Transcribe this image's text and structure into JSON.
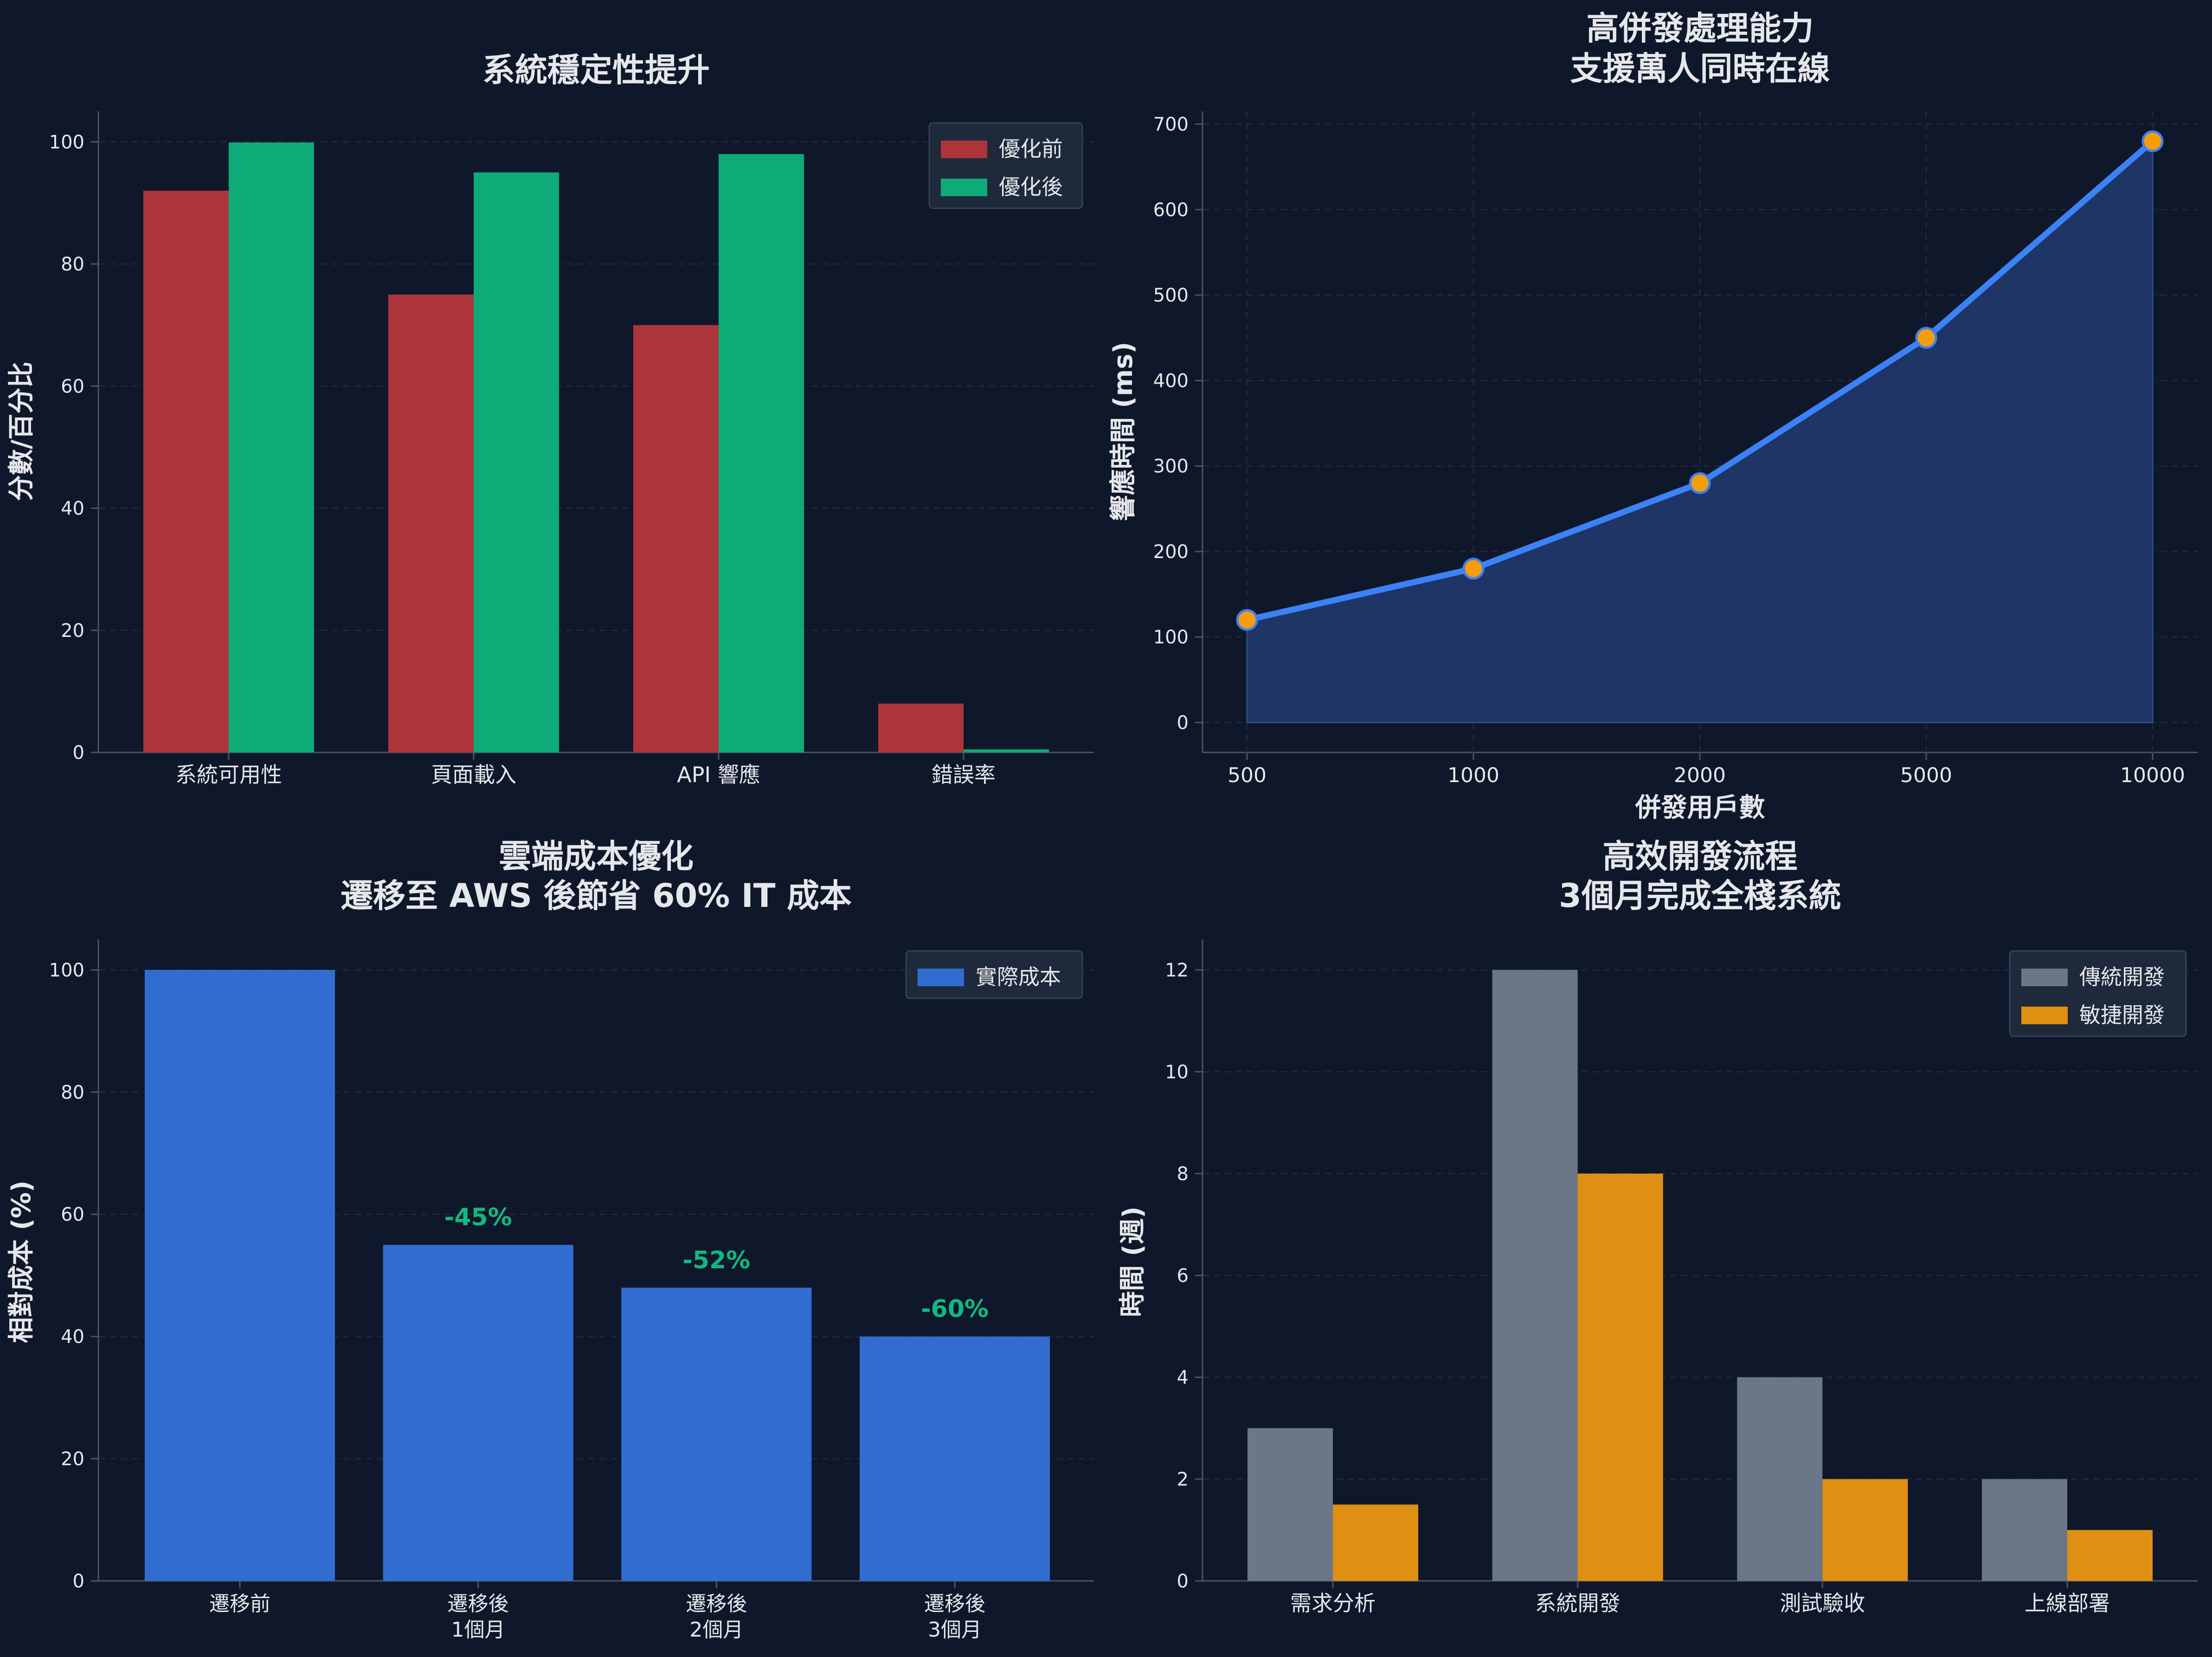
{
  "colors": {
    "background": "#0f172a",
    "text": "#e5e7eb",
    "axis": "#4b5563",
    "grid": "#1e293b",
    "before": "#ab353b",
    "after": "#0eaa77",
    "line": "#3b82f6",
    "area": "#1e3566",
    "marker": "#f59e0b",
    "cost": "#316dd0",
    "saving": "#10b981",
    "traditional": "#6b7689",
    "agile": "#df8f12",
    "legend_bg": "#1e293b"
  },
  "chart_data": [
    {
      "type": "bar",
      "title": "系統穩定性提升",
      "xlabel": "",
      "ylabel": "分數/百分比",
      "categories": [
        "系統可用性",
        "頁面載入",
        "API 響應",
        "錯誤率"
      ],
      "series": [
        {
          "name": "優化前",
          "values": [
            92,
            75,
            70,
            8
          ]
        },
        {
          "name": "優化後",
          "values": [
            99.9,
            95,
            98,
            0.5
          ]
        }
      ],
      "ylim": [
        0,
        105
      ],
      "yticks": [
        "0",
        "20",
        "40",
        "60",
        "80",
        "100"
      ],
      "legend": "top-right",
      "grid": true
    },
    {
      "type": "area",
      "title": [
        "高併發處理能力",
        "支援萬人同時在線"
      ],
      "xlabel": "併發用戶數",
      "ylabel": "響應時間 (ms)",
      "categories": [
        "500",
        "1000",
        "2000",
        "5000",
        "10000"
      ],
      "values": [
        120,
        180,
        280,
        450,
        680
      ],
      "ylim": [
        -35,
        715
      ],
      "yticks": [
        "0",
        "100",
        "200",
        "300",
        "400",
        "500",
        "600",
        "700"
      ],
      "grid": true
    },
    {
      "type": "bar",
      "title": [
        "雲端成本優化",
        "遷移至 AWS 後節省 60% IT 成本"
      ],
      "xlabel": "",
      "ylabel": "相對成本 (%)",
      "categories": [
        [
          "遷移前"
        ],
        [
          "遷移後",
          "1個月"
        ],
        [
          "遷移後",
          "2個月"
        ],
        [
          "遷移後",
          "3個月"
        ]
      ],
      "series": [
        {
          "name": "實際成本",
          "values": [
            100,
            55,
            48,
            40
          ]
        }
      ],
      "annotations": [
        "",
        "-45%",
        "-52%",
        "-60%"
      ],
      "ylim": [
        0,
        105
      ],
      "yticks": [
        "0",
        "20",
        "40",
        "60",
        "80",
        "100"
      ],
      "legend": "top-right",
      "grid": true
    },
    {
      "type": "bar",
      "title": [
        "高效開發流程",
        "3個月完成全棧系統"
      ],
      "xlabel": "",
      "ylabel": "時間 (週)",
      "categories": [
        "需求分析",
        "系統開發",
        "測試驗收",
        "上線部署"
      ],
      "series": [
        {
          "name": "傳統開發",
          "values": [
            3,
            12,
            4,
            2
          ]
        },
        {
          "name": "敏捷開發",
          "values": [
            1.5,
            8,
            2,
            1
          ]
        }
      ],
      "ylim": [
        0,
        12.6
      ],
      "yticks": [
        "0",
        "2",
        "4",
        "6",
        "8",
        "10",
        "12"
      ],
      "legend": "top-right",
      "grid": true
    }
  ]
}
